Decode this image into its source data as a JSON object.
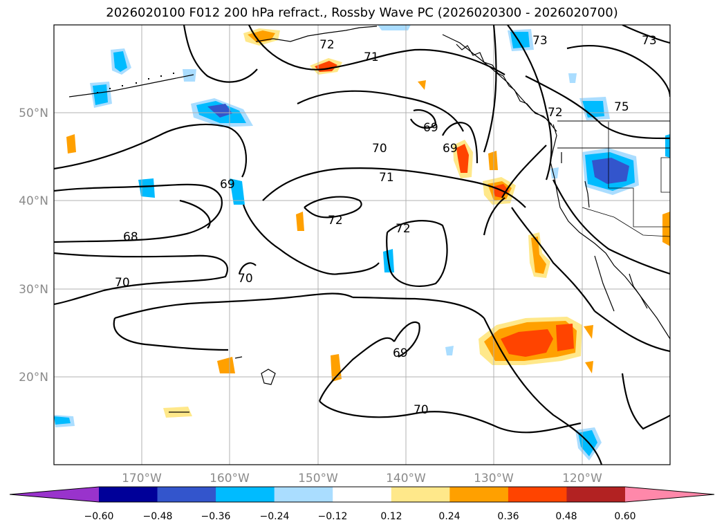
{
  "title": "2026020100 F012 200 hPa refract., Rossby Wave PC (2026020300 - 2026020700)",
  "lat_labels": [
    "50°N",
    "40°N",
    "30°N",
    "20°N"
  ],
  "lon_labels": [
    "170°W",
    "160°W",
    "150°W",
    "140°W",
    "130°W",
    "120°W"
  ],
  "contour_labels": [
    "72",
    "71",
    "73",
    "73",
    "75",
    "72",
    "69",
    "69",
    "70",
    "71",
    "69",
    "68",
    "72",
    "72",
    "70",
    "70",
    "69",
    "70"
  ],
  "colorbar": {
    "colors": [
      "#9933cc",
      "#000099",
      "#3355cc",
      "#00bbff",
      "#aaddff",
      "#ffffff",
      "#ffe88a",
      "#ffa000",
      "#ff4400",
      "#b22222",
      "#ff88aa"
    ],
    "tick_labels": [
      "−0.60",
      "−0.48",
      "−0.36",
      "−0.24",
      "−0.12",
      "0.12",
      "0.24",
      "0.36",
      "0.48",
      "0.60"
    ]
  },
  "colors": {
    "contour": "#000000",
    "coastline": "#000000",
    "gridline": "#b0b0b0",
    "tick_label": "#8a8a8a"
  }
}
